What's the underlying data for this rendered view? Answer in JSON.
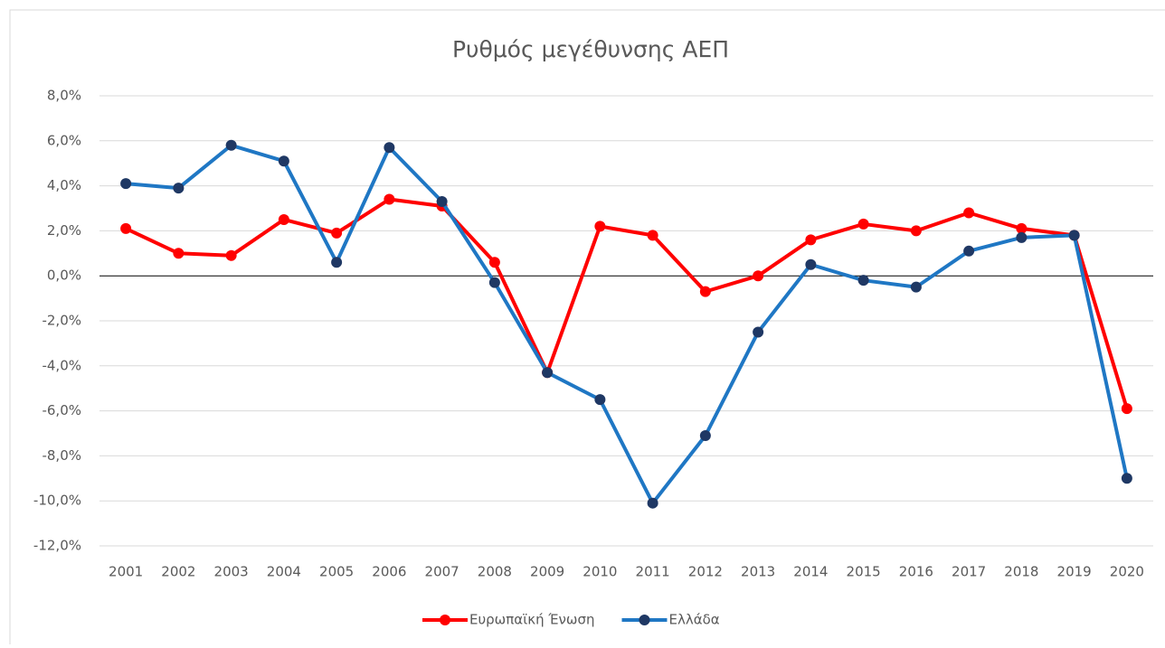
{
  "chart_data": {
    "type": "line",
    "title": "Ρυθμός μεγέθυνσης ΑΕΠ",
    "categories": [
      "2001",
      "2002",
      "2003",
      "2004",
      "2005",
      "2006",
      "2007",
      "2008",
      "2009",
      "2010",
      "2011",
      "2012",
      "2013",
      "2014",
      "2015",
      "2016",
      "2017",
      "2018",
      "2019",
      "2020"
    ],
    "series": [
      {
        "name": "Ευρωπαϊκή Ένωση",
        "color": "#ff0000",
        "marker_color": "#ff0000",
        "values": [
          2.1,
          1.0,
          0.9,
          2.5,
          1.9,
          3.4,
          3.1,
          0.6,
          -4.3,
          2.2,
          1.8,
          -0.7,
          0.0,
          1.6,
          2.3,
          2.0,
          2.8,
          2.1,
          1.8,
          -5.9
        ]
      },
      {
        "name": "Ελλάδα",
        "color": "#1f77c4",
        "marker_color": "#1f3864",
        "values": [
          4.1,
          3.9,
          5.8,
          5.1,
          0.6,
          5.7,
          3.3,
          -0.3,
          -4.3,
          -5.5,
          -10.1,
          -7.1,
          -2.5,
          0.5,
          -0.2,
          -0.5,
          1.1,
          1.7,
          1.8,
          -9.0
        ]
      }
    ],
    "ylim": [
      -12,
      8
    ],
    "yticks": [
      {
        "value": -12,
        "label": "-12,0%"
      },
      {
        "value": -10,
        "label": "-10,0%"
      },
      {
        "value": -8,
        "label": "-8,0%"
      },
      {
        "value": -6,
        "label": "-6,0%"
      },
      {
        "value": -4,
        "label": "-4,0%"
      },
      {
        "value": -2,
        "label": "-2,0%"
      },
      {
        "value": 0,
        "label": "0,0%"
      },
      {
        "value": 2,
        "label": "2,0%"
      },
      {
        "value": 4,
        "label": "4,0%"
      },
      {
        "value": 6,
        "label": "6,0%"
      },
      {
        "value": 8,
        "label": "8,0%"
      }
    ],
    "grid": true,
    "legend": "bottom"
  }
}
